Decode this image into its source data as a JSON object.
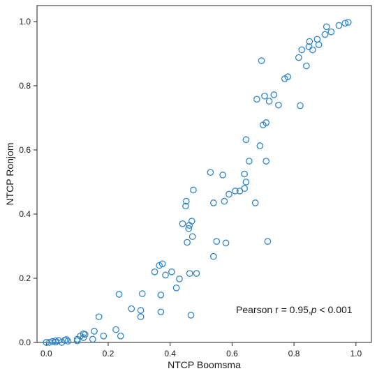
{
  "chart_data": {
    "type": "scatter",
    "title": "",
    "xlabel": "NTCP Boomsma",
    "ylabel": "NTCP Ronjom",
    "xlim": [
      -0.03,
      1.05
    ],
    "ylim": [
      0.0,
      1.05
    ],
    "xticks": [
      "0.0",
      "0.2",
      "0.4",
      "0.6",
      "0.8",
      "1.0"
    ],
    "yticks": [
      "0.0",
      "0.2",
      "0.4",
      "0.6",
      "0.8",
      "1.0"
    ],
    "grid": false,
    "legend": "none",
    "marker_color": "#2e86c8",
    "annotation": {
      "prefix": "Pearson r = 0.95,",
      "p_symbol": "p",
      "suffix": " < 0.001"
    },
    "points": [
      [
        0.0,
        0.0
      ],
      [
        0.01,
        0.0
      ],
      [
        0.02,
        0.003
      ],
      [
        0.03,
        0.005
      ],
      [
        0.03,
        0.001
      ],
      [
        0.04,
        0.006
      ],
      [
        0.05,
        0.0
      ],
      [
        0.06,
        0.007
      ],
      [
        0.065,
        0.009
      ],
      [
        0.07,
        0.004
      ],
      [
        0.1,
        0.01
      ],
      [
        0.1,
        0.005
      ],
      [
        0.11,
        0.02
      ],
      [
        0.12,
        0.027
      ],
      [
        0.12,
        0.015
      ],
      [
        0.125,
        0.025
      ],
      [
        0.15,
        0.01
      ],
      [
        0.155,
        0.035
      ],
      [
        0.17,
        0.08
      ],
      [
        0.185,
        0.02
      ],
      [
        0.225,
        0.04
      ],
      [
        0.235,
        0.15
      ],
      [
        0.24,
        0.02
      ],
      [
        0.275,
        0.105
      ],
      [
        0.305,
        0.08
      ],
      [
        0.305,
        0.1
      ],
      [
        0.31,
        0.152
      ],
      [
        0.35,
        0.22
      ],
      [
        0.365,
        0.24
      ],
      [
        0.37,
        0.095
      ],
      [
        0.37,
        0.148
      ],
      [
        0.375,
        0.245
      ],
      [
        0.385,
        0.21
      ],
      [
        0.405,
        0.22
      ],
      [
        0.42,
        0.17
      ],
      [
        0.43,
        0.198
      ],
      [
        0.44,
        0.37
      ],
      [
        0.45,
        0.425
      ],
      [
        0.452,
        0.44
      ],
      [
        0.455,
        0.312
      ],
      [
        0.46,
        0.355
      ],
      [
        0.462,
        0.365
      ],
      [
        0.463,
        0.215
      ],
      [
        0.467,
        0.085
      ],
      [
        0.47,
        0.378
      ],
      [
        0.472,
        0.33
      ],
      [
        0.475,
        0.475
      ],
      [
        0.485,
        0.215
      ],
      [
        0.53,
        0.53
      ],
      [
        0.54,
        0.435
      ],
      [
        0.54,
        0.268
      ],
      [
        0.55,
        0.315
      ],
      [
        0.57,
        0.522
      ],
      [
        0.575,
        0.44
      ],
      [
        0.58,
        0.31
      ],
      [
        0.59,
        0.462
      ],
      [
        0.61,
        0.472
      ],
      [
        0.625,
        0.472
      ],
      [
        0.64,
        0.48
      ],
      [
        0.64,
        0.525
      ],
      [
        0.645,
        0.5
      ],
      [
        0.645,
        0.632
      ],
      [
        0.655,
        0.565
      ],
      [
        0.675,
        0.435
      ],
      [
        0.68,
        0.758
      ],
      [
        0.69,
        0.613
      ],
      [
        0.695,
        0.878
      ],
      [
        0.7,
        0.678
      ],
      [
        0.705,
        0.768
      ],
      [
        0.71,
        0.685
      ],
      [
        0.71,
        0.565
      ],
      [
        0.715,
        0.315
      ],
      [
        0.72,
        0.752
      ],
      [
        0.735,
        0.772
      ],
      [
        0.75,
        0.74
      ],
      [
        0.77,
        0.822
      ],
      [
        0.78,
        0.828
      ],
      [
        0.815,
        0.888
      ],
      [
        0.82,
        0.738
      ],
      [
        0.825,
        0.912
      ],
      [
        0.84,
        0.862
      ],
      [
        0.848,
        0.922
      ],
      [
        0.85,
        0.938
      ],
      [
        0.86,
        0.912
      ],
      [
        0.875,
        0.945
      ],
      [
        0.88,
        0.928
      ],
      [
        0.9,
        0.96
      ],
      [
        0.905,
        0.984
      ],
      [
        0.92,
        0.968
      ],
      [
        0.945,
        0.988
      ],
      [
        0.965,
        0.995
      ],
      [
        0.975,
        0.998
      ]
    ]
  }
}
